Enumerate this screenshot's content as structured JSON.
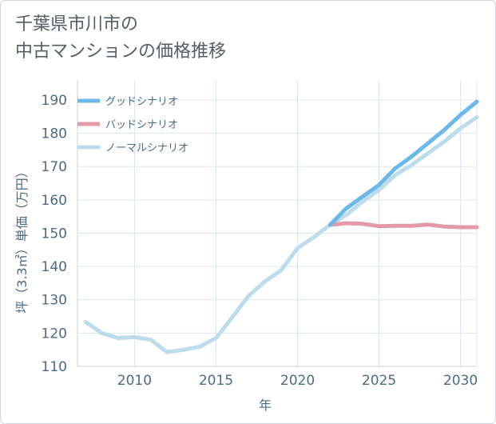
{
  "title_line1": "千葉県市川市の",
  "title_line2": "中古マンションの価格推移",
  "chart_data": {
    "type": "line",
    "title": "千葉県市川市の中古マンションの価格推移",
    "xlabel": "年",
    "ylabel": "坪（3.3㎡）単価（万円）",
    "xlim": [
      2006.5,
      2031
    ],
    "ylim": [
      110,
      196
    ],
    "x_ticks": [
      2010,
      2015,
      2020,
      2025,
      2030
    ],
    "y_ticks": [
      110,
      120,
      130,
      140,
      150,
      160,
      170,
      180,
      190
    ],
    "legend_position": "top-left",
    "series": [
      {
        "name": "グッドシナリオ",
        "color": "#6bb8ea",
        "x": [
          2022,
          2023,
          2024,
          2025,
          2026,
          2027,
          2028,
          2029,
          2030,
          2031
        ],
        "values": [
          152.5,
          157.5,
          161,
          164.5,
          169.5,
          173,
          177,
          181,
          185.5,
          189.5
        ]
      },
      {
        "name": "バッドシナリオ",
        "color": "#e39aa6",
        "x": [
          2022,
          2023,
          2024,
          2025,
          2026,
          2027,
          2028,
          2029,
          2030,
          2031
        ],
        "values": [
          152.5,
          153,
          152.8,
          152.1,
          152.2,
          152.2,
          152.6,
          152.0,
          151.8,
          151.8
        ]
      },
      {
        "name": "ノーマルシナリオ",
        "color": "#bcdcec",
        "x": [
          2007,
          2008,
          2009,
          2010,
          2011,
          2012,
          2013,
          2014,
          2015,
          2016,
          2017,
          2018,
          2019,
          2020,
          2021,
          2022,
          2023,
          2024,
          2025,
          2026,
          2027,
          2028,
          2029,
          2030,
          2031
        ],
        "values": [
          123.3,
          120.0,
          118.5,
          118.8,
          118.0,
          114.3,
          115.0,
          115.9,
          118.5,
          124.8,
          131.2,
          135.5,
          138.9,
          145.5,
          148.8,
          152.5,
          155.5,
          159.5,
          163.0,
          167.5,
          170.5,
          174.0,
          177.5,
          181.5,
          184.8
        ]
      }
    ]
  }
}
